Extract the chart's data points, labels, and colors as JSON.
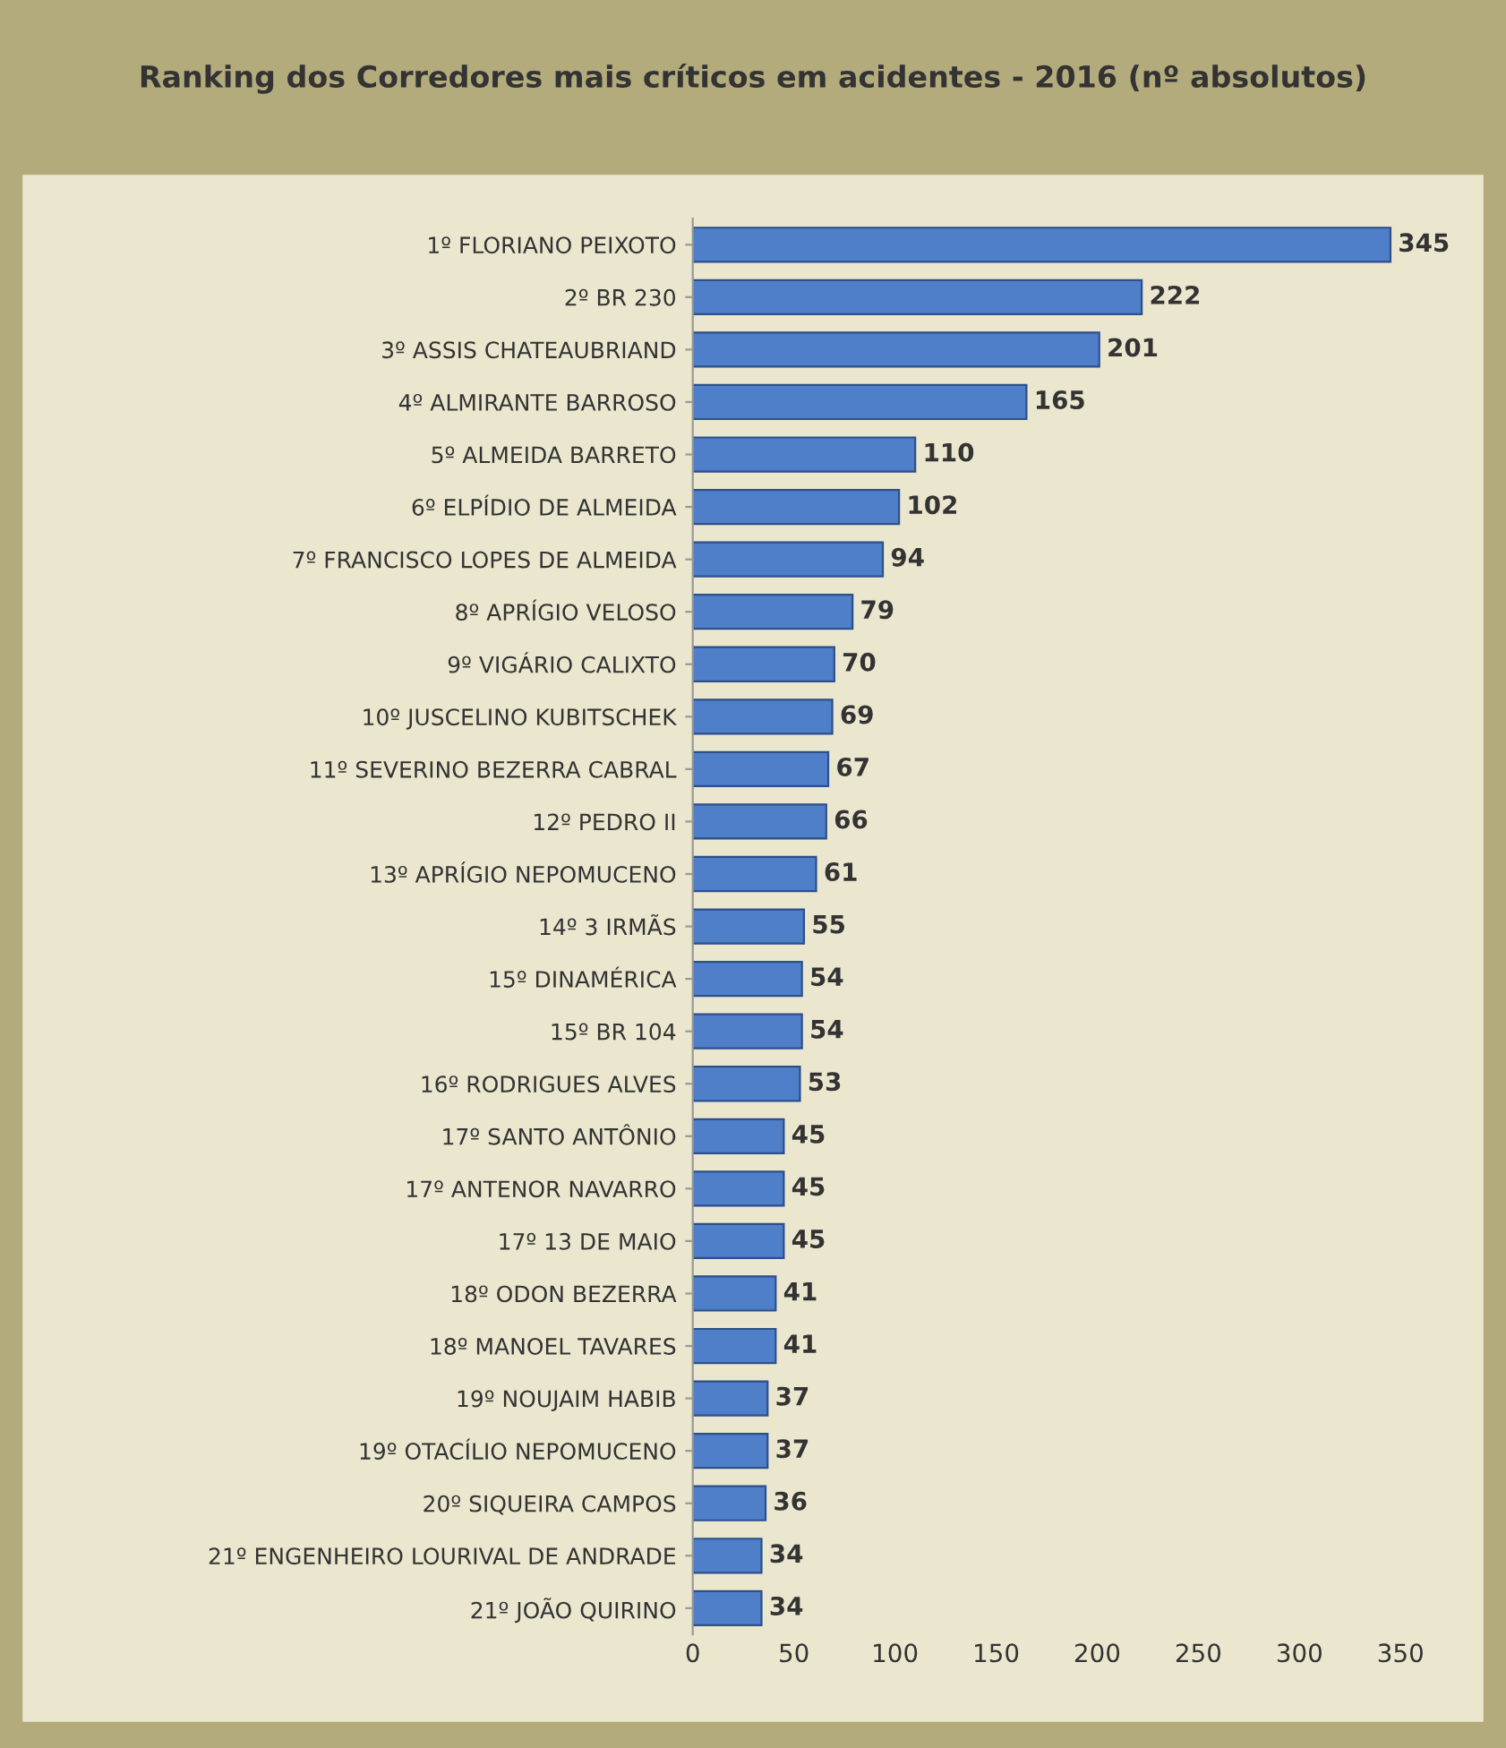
{
  "chart_data": {
    "type": "bar",
    "orientation": "horizontal",
    "title": "Ranking dos Corredores mais críticos em acidentes - 2016 (nº absolutos)",
    "categories": [
      "1º FLORIANO PEIXOTO",
      "2º BR 230",
      "3º ASSIS CHATEAUBRIAND",
      "4º ALMIRANTE BARROSO",
      "5º ALMEIDA BARRETO",
      "6º ELPÍDIO DE ALMEIDA",
      "7º FRANCISCO LOPES DE ALMEIDA",
      "8º APRÍGIO VELOSO",
      "9º VIGÁRIO CALIXTO",
      "10º JUSCELINO KUBITSCHEK",
      "11º SEVERINO BEZERRA CABRAL",
      "12º PEDRO II",
      "13º APRÍGIO NEPOMUCENO",
      "14º 3 IRMÃS",
      "15º DINAMÉRICA",
      "15º BR 104",
      "16º RODRIGUES ALVES",
      "17º SANTO ANTÔNIO",
      "17º ANTENOR NAVARRO",
      "17º 13 DE MAIO",
      "18º ODON BEZERRA",
      "18º MANOEL TAVARES",
      "19º NOUJAIM HABIB",
      "19º OTACÍLIO NEPOMUCENO",
      "20º SIQUEIRA CAMPOS",
      "21º ENGENHEIRO LOURIVAL DE ANDRADE",
      "21º JOÃO QUIRINO"
    ],
    "values": [
      345,
      222,
      201,
      165,
      110,
      102,
      94,
      79,
      70,
      69,
      67,
      66,
      61,
      55,
      54,
      54,
      53,
      45,
      45,
      45,
      41,
      41,
      37,
      37,
      36,
      34,
      34
    ],
    "color": "#4f7fc8",
    "xlim": [
      0,
      350
    ],
    "xticks": [
      0,
      50,
      100,
      150,
      200,
      250,
      300,
      350
    ],
    "data_labels": true,
    "grid": false,
    "legend": false
  }
}
